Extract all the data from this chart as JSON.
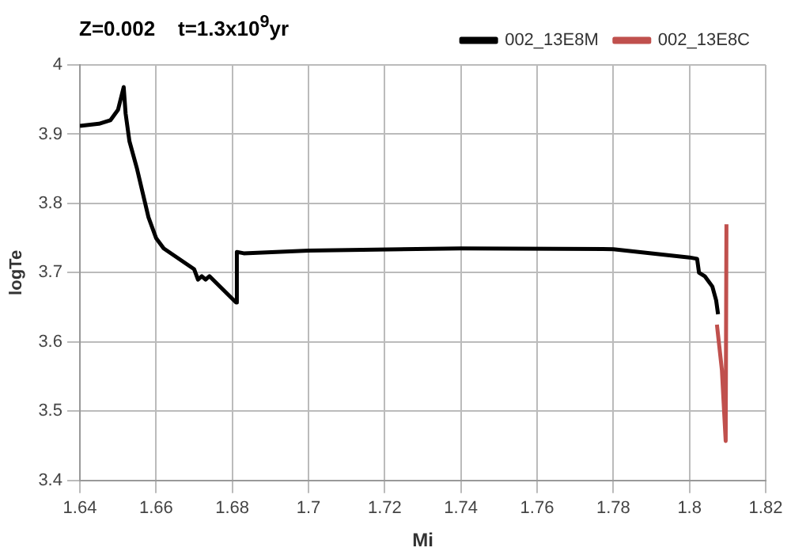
{
  "chart_data": {
    "type": "line",
    "title": "Z=0.002    t=1.3x10$^{9}$yr",
    "xlabel": "Mi",
    "ylabel": "logTe",
    "xlim": [
      1.64,
      1.82
    ],
    "xticks": [
      1.64,
      1.66,
      1.68,
      {
        "value": 1.7,
        "label": "1.7"
      },
      1.72,
      1.74,
      1.76,
      1.78,
      {
        "value": 1.8,
        "label": "1.8"
      },
      1.82
    ],
    "ylim": [
      3.4,
      4
    ],
    "yticks": [
      {
        "value": 3.4,
        "label": "3.4"
      },
      3.5,
      3.6,
      3.7,
      3.8,
      3.9,
      4
    ],
    "grid": true,
    "legend": "top right",
    "marker": "none",
    "line_style": "solid",
    "series": [
      {
        "name": "002_13E8M",
        "color": "#000000",
        "x": [
          1.64,
          1.645,
          1.648,
          1.65,
          1.6515,
          1.652,
          1.653,
          1.655,
          1.658,
          1.66,
          1.662,
          1.67,
          1.671,
          1.672,
          1.673,
          1.674,
          1.681,
          1.6812,
          1.683,
          1.7,
          1.74,
          1.78,
          1.8,
          1.802,
          1.8025,
          1.804,
          1.806,
          1.807,
          1.8075
        ],
        "values": [
          3.912,
          3.915,
          3.92,
          3.935,
          3.968,
          3.93,
          3.89,
          3.85,
          3.78,
          3.75,
          3.735,
          3.705,
          3.69,
          3.695,
          3.69,
          3.695,
          3.657,
          3.73,
          3.728,
          3.732,
          3.735,
          3.734,
          3.722,
          3.72,
          3.7,
          3.695,
          3.68,
          3.66,
          3.64
        ]
      },
      {
        "name": "002_13E8C",
        "color": "#c0504d",
        "x": [
          1.8072,
          1.8085,
          1.8095,
          1.8097
        ],
        "values": [
          3.625,
          3.56,
          3.457,
          3.77
        ]
      }
    ]
  }
}
